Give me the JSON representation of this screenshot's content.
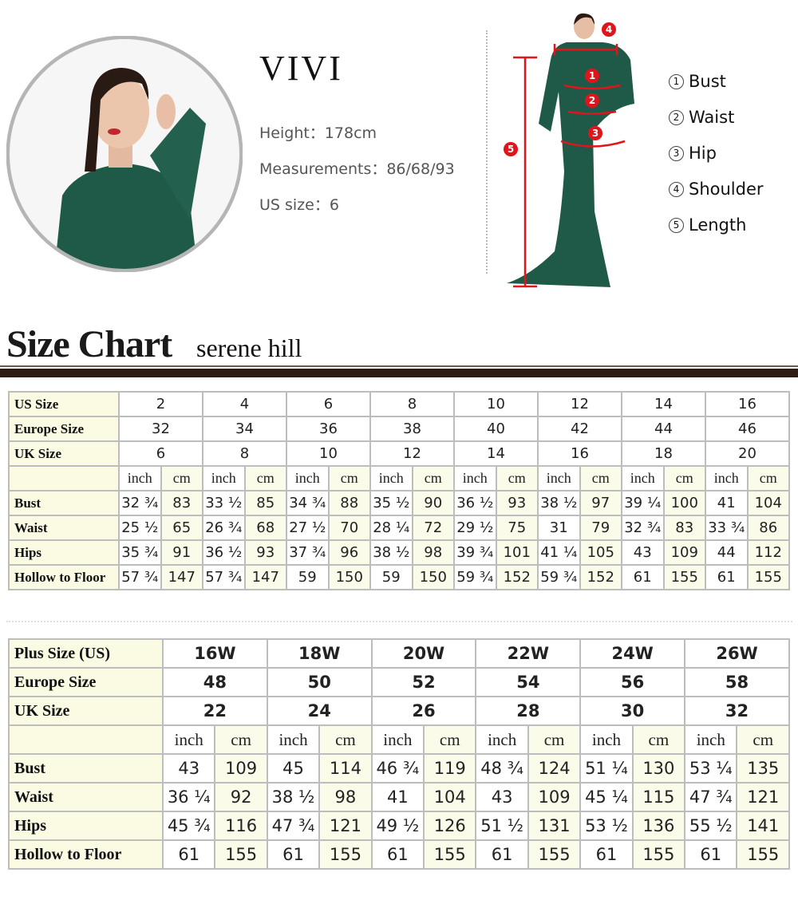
{
  "model": {
    "name": "VIVI",
    "height": "Height：178cm",
    "measurements": "Measurements：86/68/93",
    "us_size": "US size：6"
  },
  "figure_markers": [
    "1",
    "2",
    "3",
    "4",
    "5"
  ],
  "legend": [
    {
      "num": "1",
      "label": "Bust"
    },
    {
      "num": "2",
      "label": "Waist"
    },
    {
      "num": "3",
      "label": "Hip"
    },
    {
      "num": "4",
      "label": "Shoulder"
    },
    {
      "num": "5",
      "label": "Length"
    }
  ],
  "colors": {
    "marker_red": "#e0141b",
    "dress_green": "#1f5a48",
    "rule_brown": "#2e1c14",
    "label_cell": "#fbfbe3"
  },
  "header": {
    "title": "Size Chart",
    "brand": "serene hill"
  },
  "standard_table": {
    "header_rows": [
      {
        "label": "US Size",
        "values": [
          "2",
          "4",
          "6",
          "8",
          "10",
          "12",
          "14",
          "16"
        ]
      },
      {
        "label": "Europe Size",
        "values": [
          "32",
          "34",
          "36",
          "38",
          "40",
          "42",
          "44",
          "46"
        ]
      },
      {
        "label": "UK Size",
        "values": [
          "6",
          "8",
          "10",
          "12",
          "14",
          "16",
          "18",
          "20"
        ]
      }
    ],
    "units": [
      "inch",
      "cm"
    ],
    "rows": [
      {
        "label": "Bust",
        "values": [
          "32 ¾",
          "83",
          "33 ½",
          "85",
          "34 ¾",
          "88",
          "35 ½",
          "90",
          "36 ½",
          "93",
          "38 ½",
          "97",
          "39 ¼",
          "100",
          "41",
          "104"
        ]
      },
      {
        "label": "Waist",
        "values": [
          "25 ½",
          "65",
          "26 ¾",
          "68",
          "27 ½",
          "70",
          "28 ¼",
          "72",
          "29 ½",
          "75",
          "31",
          "79",
          "32 ¾",
          "83",
          "33 ¾",
          "86"
        ]
      },
      {
        "label": "Hips",
        "values": [
          "35 ¾",
          "91",
          "36 ½",
          "93",
          "37 ¾",
          "96",
          "38 ½",
          "98",
          "39 ¾",
          "101",
          "41 ¼",
          "105",
          "43",
          "109",
          "44",
          "112"
        ]
      },
      {
        "label": "Hollow to Floor",
        "values": [
          "57 ¾",
          "147",
          "57 ¾",
          "147",
          "59",
          "150",
          "59",
          "150",
          "59 ¾",
          "152",
          "59 ¾",
          "152",
          "61",
          "155",
          "61",
          "155"
        ]
      }
    ]
  },
  "plus_table": {
    "header_rows": [
      {
        "label": "Plus Size (US)",
        "values": [
          "16W",
          "18W",
          "20W",
          "22W",
          "24W",
          "26W"
        ]
      },
      {
        "label": "Europe Size",
        "values": [
          "48",
          "50",
          "52",
          "54",
          "56",
          "58"
        ]
      },
      {
        "label": "UK Size",
        "values": [
          "22",
          "24",
          "26",
          "28",
          "30",
          "32"
        ]
      }
    ],
    "units": [
      "inch",
      "cm"
    ],
    "rows": [
      {
        "label": "Bust",
        "values": [
          "43",
          "109",
          "45",
          "114",
          "46 ¾",
          "119",
          "48 ¾",
          "124",
          "51 ¼",
          "130",
          "53 ¼",
          "135"
        ]
      },
      {
        "label": "Waist",
        "values": [
          "36 ¼",
          "92",
          "38 ½",
          "98",
          "41",
          "104",
          "43",
          "109",
          "45 ¼",
          "115",
          "47 ¾",
          "121"
        ]
      },
      {
        "label": "Hips",
        "values": [
          "45 ¾",
          "116",
          "47 ¾",
          "121",
          "49 ½",
          "126",
          "51 ½",
          "131",
          "53 ½",
          "136",
          "55 ½",
          "141"
        ]
      },
      {
        "label": "Hollow to Floor",
        "values": [
          "61",
          "155",
          "61",
          "155",
          "61",
          "155",
          "61",
          "155",
          "61",
          "155",
          "61",
          "155"
        ]
      }
    ]
  }
}
